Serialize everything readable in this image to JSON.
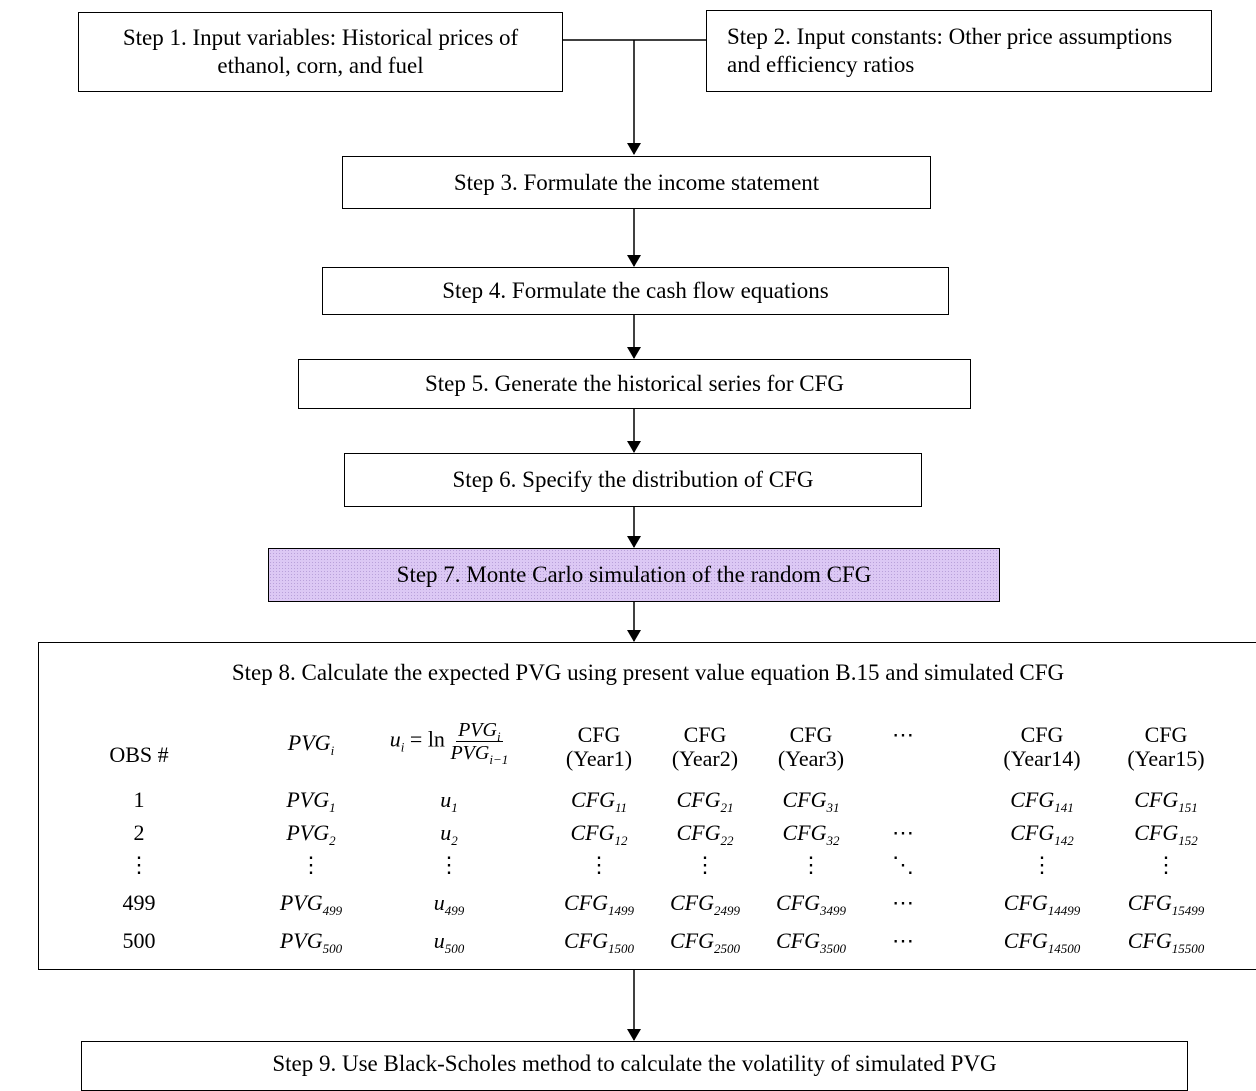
{
  "steps": {
    "s1": "Step 1. Input variables: Historical prices of ethanol, corn, and fuel",
    "s2": "Step 2.  Input constants: Other price assumptions and efficiency ratios",
    "s3": "Step 3.  Formulate the income statement",
    "s4": "Step 4.  Formulate the cash flow equations",
    "s5": "Step 5.  Generate the historical series for CFG",
    "s6": "Step 6.  Specify the distribution of CFG",
    "s7": "Step 7. Monte Carlo simulation of the random CFG",
    "s8": "Step 8. Calculate the expected PVG using present value equation B.15 and simulated CFG",
    "s9": "Step 9. Use Black-Scholes method to calculate the volatility of simulated PVG"
  },
  "colors": {
    "step7_fill": "#dcc8f4"
  },
  "table": {
    "header": {
      "obs": "OBS #",
      "pvg": "PVG",
      "pvg_sub": "i",
      "u_lhs": "u",
      "u_sub": "i",
      "u_eq": " = ln ",
      "u_num": "PVG",
      "u_num_sub": "i",
      "u_den": "PVG",
      "u_den_sub": "i−1",
      "cfg": "CFG",
      "years": [
        "(Year1)",
        "(Year2)",
        "(Year3)",
        "(Year14)",
        "(Year15)"
      ],
      "ellipsis": "⋯"
    },
    "rows": [
      {
        "obs": "1",
        "pvg": "1",
        "u": "1",
        "cfg": [
          "11",
          "21",
          "31",
          "141",
          "151"
        ],
        "dots": ""
      },
      {
        "obs": "2",
        "pvg": "2",
        "u": "2",
        "cfg": [
          "12",
          "22",
          "32",
          "142",
          "152"
        ],
        "dots": "⋯"
      },
      {
        "obs": "⋮",
        "pvg": "⋮",
        "u": "⋮",
        "cfg": [
          "⋮",
          "⋮",
          "⋮",
          "⋮",
          "⋮"
        ],
        "dots": "⋱"
      },
      {
        "obs": "499",
        "pvg": "499",
        "u": "499",
        "cfg": [
          "1499",
          "2499",
          "3499",
          "14499",
          "15499"
        ],
        "dots": "⋯"
      },
      {
        "obs": "500",
        "pvg": "500",
        "u": "500",
        "cfg": [
          "1500",
          "2500",
          "3500",
          "14500",
          "15500"
        ],
        "dots": "⋯"
      }
    ],
    "var_pvg": "PVG",
    "var_u": "u",
    "var_cfg": "CFG"
  }
}
